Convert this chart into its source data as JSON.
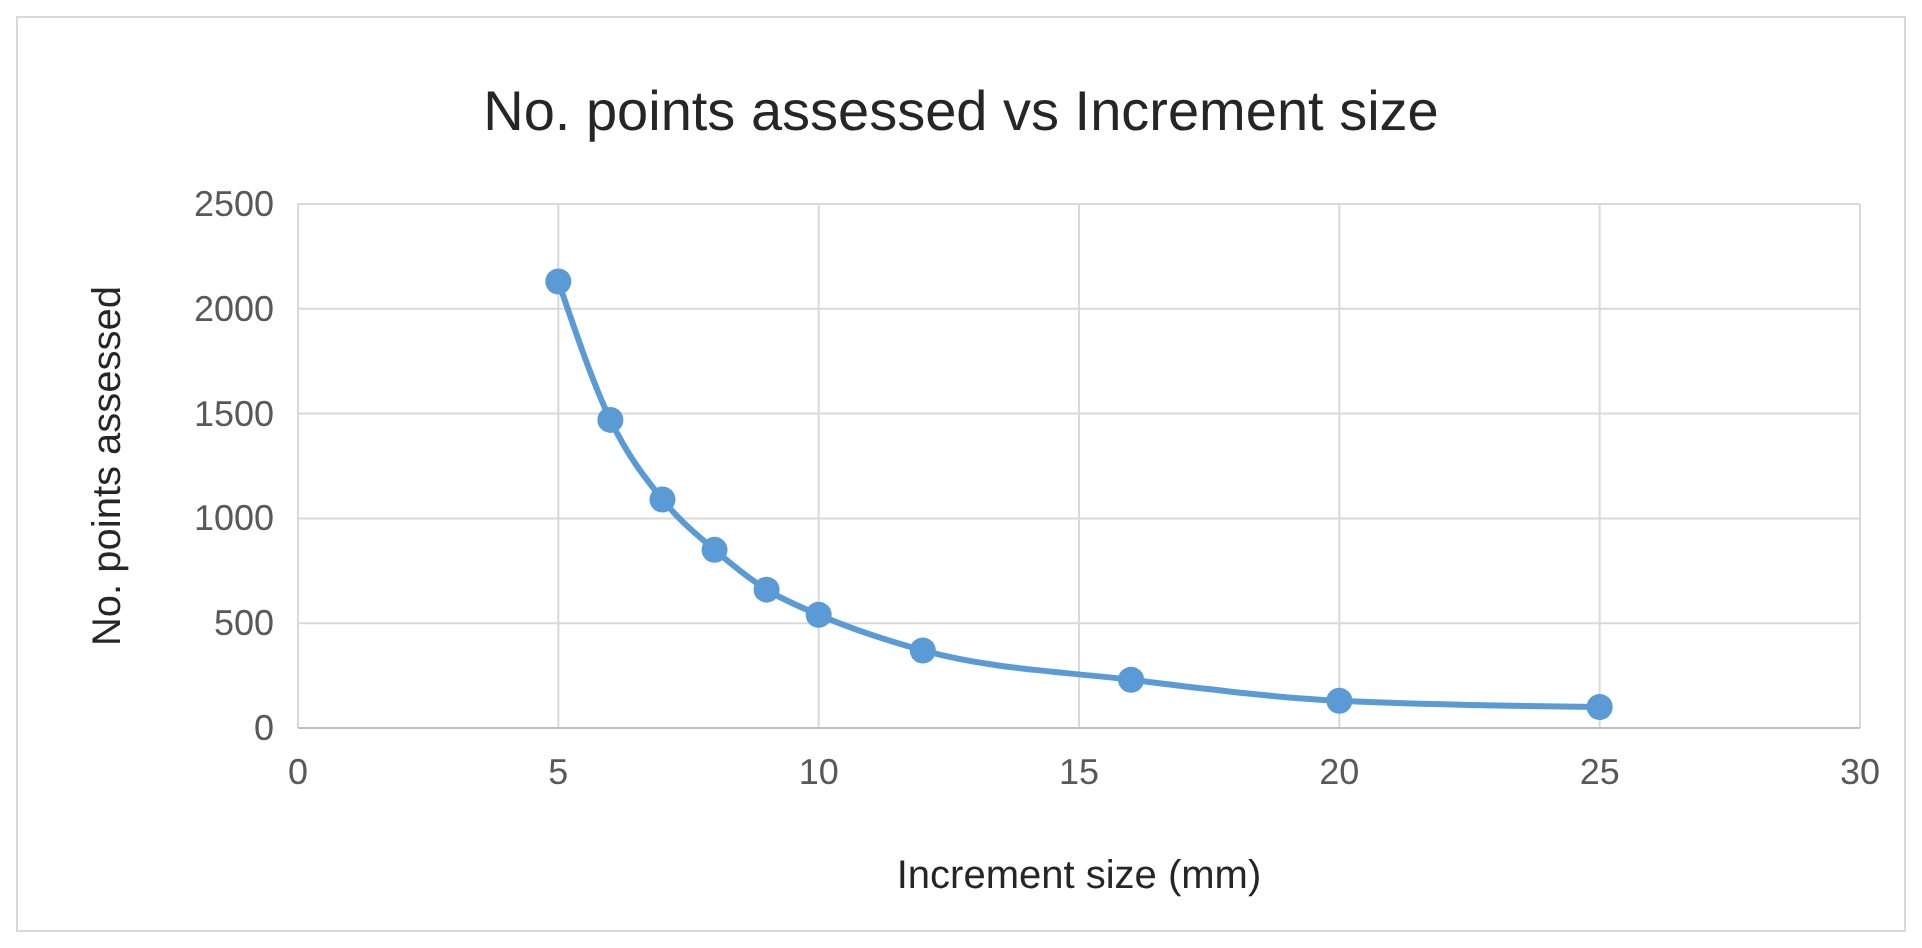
{
  "chart_data": {
    "type": "scatter",
    "title": "No. points assessed vs Increment size",
    "xlabel": "Increment size (mm)",
    "ylabel": "No. points assessed",
    "x": [
      5,
      6,
      7,
      8,
      9,
      10,
      12,
      16,
      20,
      25
    ],
    "series": [
      {
        "type": "line",
        "color": "#5b9bd5",
        "values": [
          2130,
          1470,
          1090,
          850,
          660,
          540,
          370,
          230,
          130,
          100
        ]
      }
    ],
    "xlim": [
      0,
      30
    ],
    "xticks": [
      0,
      5,
      10,
      15,
      20,
      25,
      30
    ],
    "ylim": [
      0,
      2500
    ],
    "yticks": [
      0,
      500,
      1000,
      1500,
      2000,
      2500
    ],
    "grid": true,
    "marker": "circle",
    "line_style": "solid"
  }
}
